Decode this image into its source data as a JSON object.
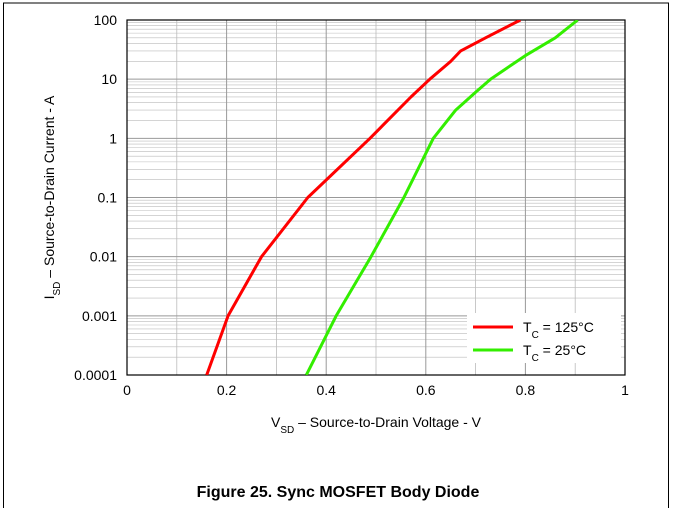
{
  "chart_data": {
    "type": "line",
    "title": "Figure 25. Sync MOSFET Body Diode",
    "xlabel": {
      "symbol": "V",
      "sub": "SD",
      "text": " – Source-to-Drain Voltage - V"
    },
    "ylabel": {
      "symbol": "I",
      "sub": "SD",
      "text": " – Source-to-Drain Current - A"
    },
    "xlim": [
      0,
      1
    ],
    "xticks": [
      0,
      0.2,
      0.4,
      0.6,
      0.8,
      1
    ],
    "ylim": [
      0.0001,
      100
    ],
    "yticks": [
      0.0001,
      0.001,
      0.01,
      0.1,
      1,
      10,
      100
    ],
    "ylog": true,
    "grid": true,
    "minor_grid": true,
    "legend": "lower right",
    "series": [
      {
        "name": {
          "symbol": "T",
          "sub": "C",
          "text": " = 125°C"
        },
        "color": "#ff0000",
        "x": [
          0.16,
          0.203,
          0.27,
          0.363,
          0.488,
          0.57,
          0.608,
          0.65,
          0.67,
          0.72,
          0.79
        ],
        "values": [
          0.0001,
          0.001,
          0.01,
          0.1,
          1,
          5,
          10,
          20,
          30,
          50,
          100
        ]
      },
      {
        "name": {
          "symbol": "T",
          "sub": "C",
          "text": " = 25°C"
        },
        "color": "#33ee00",
        "x": [
          0.36,
          0.42,
          0.49,
          0.556,
          0.615,
          0.66,
          0.7,
          0.73,
          0.8,
          0.86,
          0.905
        ],
        "values": [
          0.0001,
          0.001,
          0.01,
          0.1,
          1,
          3,
          6,
          10,
          25,
          50,
          100
        ]
      }
    ]
  }
}
